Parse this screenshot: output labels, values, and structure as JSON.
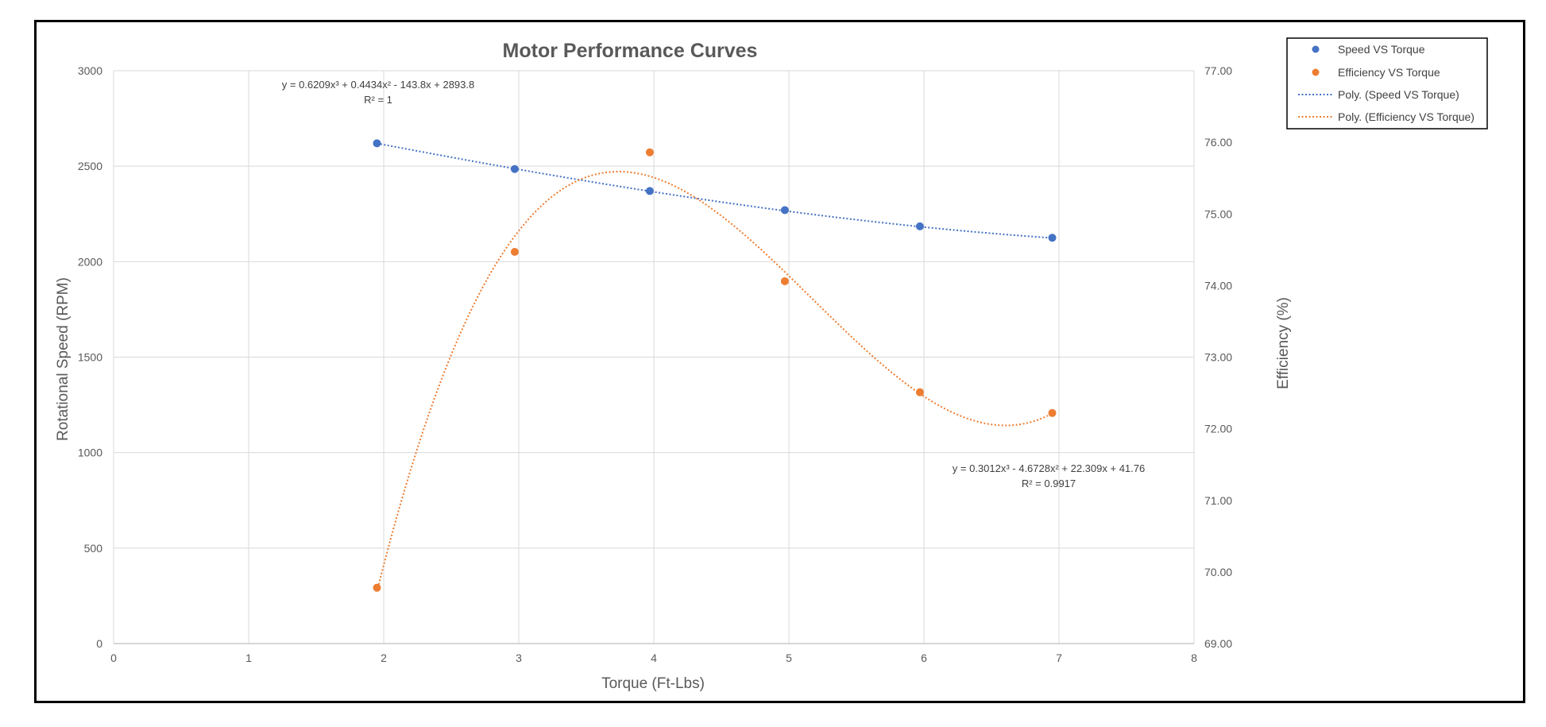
{
  "chart_data": {
    "type": "scatter",
    "title": "Motor Performance Curves",
    "xlabel": "Torque (Ft-Lbs)",
    "ylabel": "Rotational Speed (RPM)",
    "y2label": "Efficiency (%)",
    "xlim": [
      0,
      8
    ],
    "ylim": [
      0,
      3000
    ],
    "y2lim": [
      69,
      77
    ],
    "x_ticks": [
      "0",
      "1",
      "2",
      "3",
      "4",
      "5",
      "6",
      "7",
      "8"
    ],
    "y_ticks": [
      "0",
      "500",
      "1000",
      "1500",
      "2000",
      "2500",
      "3000"
    ],
    "y2_ticks": [
      "69.00",
      "70.00",
      "71.00",
      "72.00",
      "73.00",
      "74.00",
      "75.00",
      "76.00",
      "77.00"
    ],
    "grid": true,
    "legend_position": "top-right",
    "series": [
      {
        "name": "Speed VS Torque",
        "axis": "left",
        "color": "#4472C4",
        "x": [
          1.95,
          2.97,
          3.97,
          4.97,
          5.97,
          6.95
        ],
        "y": [
          2620,
          2485,
          2370,
          2270,
          2185,
          2125
        ]
      },
      {
        "name": "Efficiency VS Torque",
        "axis": "right",
        "color": "#ED7D31",
        "x": [
          1.95,
          2.97,
          3.97,
          4.97,
          5.97,
          6.95
        ],
        "y": [
          69.78,
          74.47,
          75.86,
          74.06,
          72.51,
          72.22
        ]
      }
    ],
    "trendlines": [
      {
        "name": "Poly. (Speed VS Torque)",
        "of": "Speed VS Torque",
        "axis": "left",
        "color": "#4472C4",
        "style": "dotted",
        "order": 3,
        "coefficients": [
          0.6209,
          0.4434,
          -143.8,
          2893.8
        ],
        "x_range": [
          1.95,
          6.95
        ],
        "equation": "y = 0.6209x³ + 0.4434x² - 143.8x + 2893.8",
        "r_squared": "R² = 1"
      },
      {
        "name": "Poly. (Efficiency VS Torque)",
        "of": "Efficiency VS Torque",
        "axis": "right",
        "color": "#ED7D31",
        "style": "dotted",
        "order": 3,
        "coefficients": [
          0.3012,
          -4.6728,
          22.309,
          41.76
        ],
        "x_range": [
          1.95,
          6.95
        ],
        "equation": "y = 0.3012x³ - 4.6728x² + 22.309x + 41.76",
        "r_squared": "R² = 0.9917"
      }
    ]
  }
}
